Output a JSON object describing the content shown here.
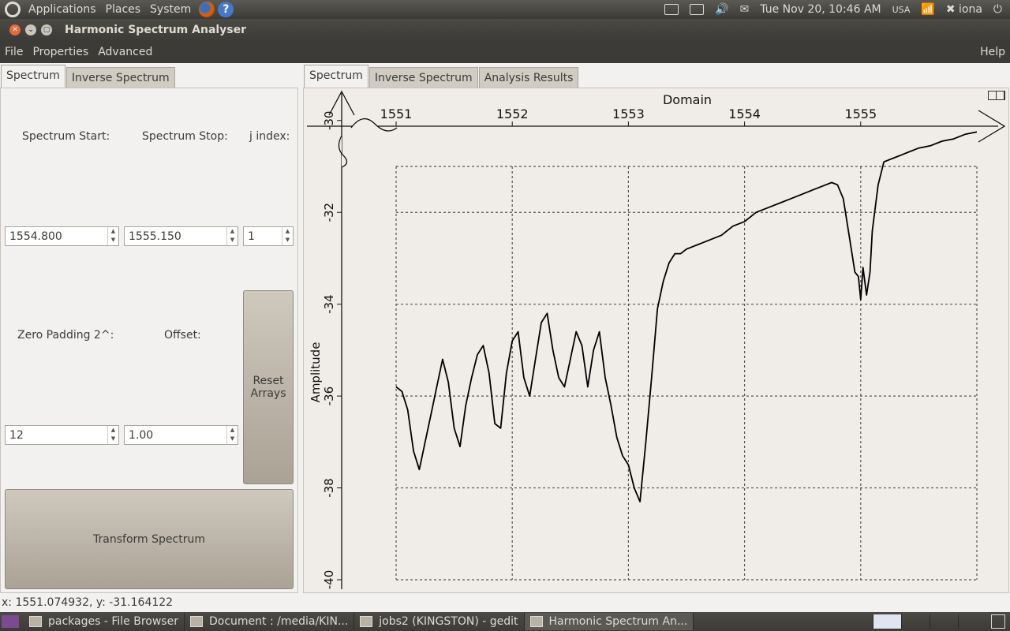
{
  "top_panel": {
    "menus": [
      "Applications",
      "Places",
      "System"
    ],
    "keyboard_label": "USA",
    "datetime": "Tue Nov 20, 10:46 AM",
    "user": "iona"
  },
  "window": {
    "title": "Harmonic Spectrum Analyser"
  },
  "menubar": {
    "items": [
      "File",
      "Properties",
      "Advanced"
    ],
    "help": "Help"
  },
  "left_tabs": [
    {
      "label": "Spectrum",
      "active": true
    },
    {
      "label": "Inverse Spectrum",
      "active": false
    }
  ],
  "controls": {
    "spectrum_start_label": "Spectrum Start:",
    "spectrum_stop_label": "Spectrum Stop:",
    "j_index_label": "j index:",
    "spectrum_start_value": "1554.800",
    "spectrum_stop_value": "1555.150",
    "j_index_value": "1",
    "zero_padding_label": "Zero Padding 2^:",
    "offset_label": "Offset:",
    "zero_padding_value": "12",
    "offset_value": "1.00",
    "reset_arrays_label": "Reset Arrays",
    "transform_label": "Transform Spectrum"
  },
  "right_tabs": [
    {
      "label": "Spectrum",
      "active": true
    },
    {
      "label": "Inverse Spectrum",
      "active": false
    },
    {
      "label": "Analysis Results",
      "active": false
    }
  ],
  "chart_data": {
    "type": "line",
    "title": "",
    "xlabel": "Domain",
    "ylabel": "Amplitude",
    "xlim": [
      1550.78,
      1556.0
    ],
    "ylim": [
      -40.1,
      -29.7
    ],
    "x_ticks": [
      1551,
      1552,
      1553,
      1554,
      1555
    ],
    "y_ticks": [
      -30,
      -32,
      -34,
      -36,
      -38,
      -40
    ],
    "grid_x": [
      1551,
      1552,
      1553,
      1554,
      1555,
      1556
    ],
    "grid_y": [
      -31,
      -32,
      -34,
      -36,
      -38,
      -40
    ],
    "grid": true,
    "series": [
      {
        "name": "spectrum",
        "x": [
          1551.0,
          1551.05,
          1551.1,
          1551.15,
          1551.2,
          1551.25,
          1551.3,
          1551.35,
          1551.4,
          1551.45,
          1551.5,
          1551.55,
          1551.6,
          1551.65,
          1551.7,
          1551.75,
          1551.8,
          1551.85,
          1551.9,
          1551.95,
          1552.0,
          1552.05,
          1552.1,
          1552.15,
          1552.2,
          1552.25,
          1552.3,
          1552.35,
          1552.4,
          1552.45,
          1552.5,
          1552.55,
          1552.6,
          1552.65,
          1552.7,
          1552.75,
          1552.8,
          1552.85,
          1552.9,
          1552.95,
          1553.0,
          1553.05,
          1553.1,
          1553.15,
          1553.2,
          1553.25,
          1553.3,
          1553.35,
          1553.4,
          1553.45,
          1553.5,
          1553.6,
          1553.7,
          1553.8,
          1553.9,
          1554.0,
          1554.1,
          1554.2,
          1554.3,
          1554.4,
          1554.5,
          1554.6,
          1554.7,
          1554.75,
          1554.8,
          1554.85,
          1554.9,
          1554.95,
          1554.98,
          1555.0,
          1555.02,
          1555.05,
          1555.08,
          1555.1,
          1555.15,
          1555.2,
          1555.3,
          1555.4,
          1555.5,
          1555.6,
          1555.7,
          1555.8,
          1555.9,
          1556.0
        ],
        "y": [
          -35.8,
          -35.9,
          -36.3,
          -37.2,
          -37.6,
          -37.0,
          -36.4,
          -35.8,
          -35.2,
          -35.7,
          -36.7,
          -37.1,
          -36.2,
          -35.6,
          -35.1,
          -34.9,
          -35.5,
          -36.6,
          -36.7,
          -35.5,
          -34.8,
          -34.6,
          -35.6,
          -36.0,
          -35.2,
          -34.4,
          -34.2,
          -35.0,
          -35.6,
          -35.8,
          -35.2,
          -34.6,
          -34.9,
          -35.8,
          -35.0,
          -34.6,
          -35.6,
          -36.2,
          -36.9,
          -37.3,
          -37.5,
          -38.0,
          -38.3,
          -37.0,
          -35.6,
          -34.1,
          -33.5,
          -33.1,
          -32.9,
          -32.9,
          -32.8,
          -32.7,
          -32.6,
          -32.5,
          -32.3,
          -32.2,
          -32.0,
          -31.9,
          -31.8,
          -31.7,
          -31.6,
          -31.5,
          -31.4,
          -31.35,
          -31.4,
          -31.7,
          -32.5,
          -33.3,
          -33.4,
          -33.9,
          -33.2,
          -33.8,
          -33.3,
          -32.4,
          -31.4,
          -30.9,
          -30.8,
          -30.7,
          -30.6,
          -30.55,
          -30.45,
          -30.4,
          -30.3,
          -30.25
        ]
      }
    ]
  },
  "status": {
    "coords": "x: 1551.074932, y: -31.164122"
  },
  "taskbar": {
    "tasks": [
      {
        "label": "packages - File Browser",
        "active": false
      },
      {
        "label": "Document : /media/KIN...",
        "active": false
      },
      {
        "label": "jobs2 (KINGSTON) - gedit",
        "active": false
      },
      {
        "label": "Harmonic Spectrum An...",
        "active": true
      }
    ]
  }
}
